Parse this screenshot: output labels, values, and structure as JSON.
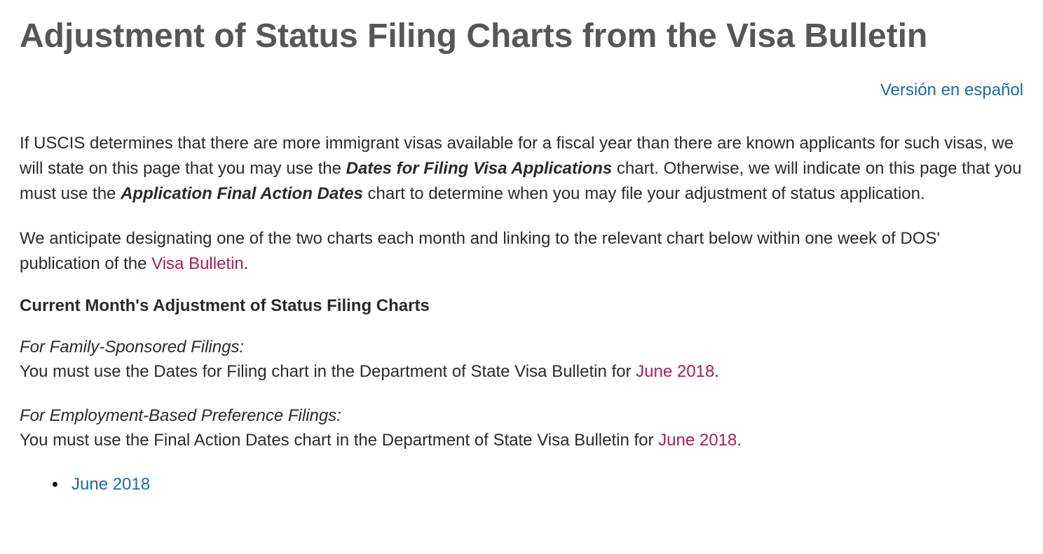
{
  "title": "Adjustment of Status Filing Charts from the Visa Bulletin",
  "lang_link": "Versión en español",
  "p1": {
    "t1": "If USCIS determines that there are more immigrant visas available for a fiscal year than there are known applicants for such visas, we will state on this page that you may use the ",
    "bi1": "Dates for Filing Visa Applications",
    "t2": " chart. Otherwise, we will indicate on this page that you must use the ",
    "bi2": "Application Final Action Dates",
    "t3": " chart to determine when you may file your adjustment of status application."
  },
  "p2": {
    "t1": "We anticipate designating one of the two charts each month and linking to the relevant chart below within one week of DOS' publication of the ",
    "link": "Visa Bulletin",
    "t2": "."
  },
  "heading": "Current Month's Adjustment of Status Filing Charts",
  "family": {
    "label": "For Family-Sponsored Filings:",
    "t1": "You must use the Dates for Filing chart in the Department of State Visa Bulletin for ",
    "link": "June 2018",
    "t2": "."
  },
  "employment": {
    "label": "For Employment-Based Preference Filings:",
    "t1": "You must use the Final Action Dates chart in the Department of State Visa Bulletin for ",
    "link": "June 2018",
    "t2": "."
  },
  "list": {
    "item1": "June 2018"
  }
}
